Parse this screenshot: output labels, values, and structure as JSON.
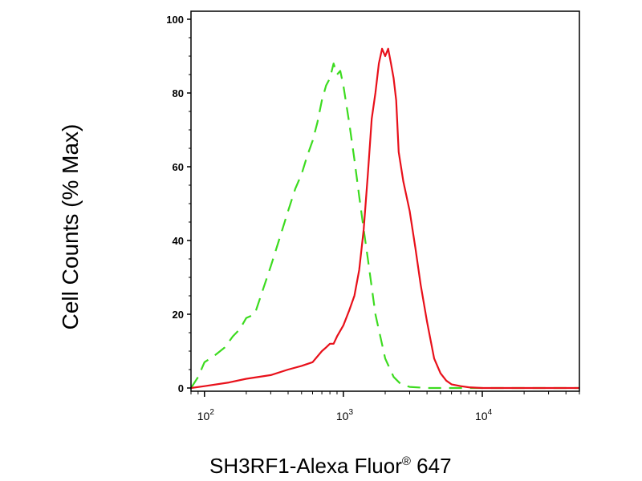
{
  "chart_data": {
    "type": "line",
    "xlabel": "SH3RF1-Alexa Fluor",
    "xlabel_superscript": "®",
    "xlabel_suffix": " 647",
    "ylabel": "Cell Counts (% Max)",
    "x_scale": "log",
    "xlim": [
      80,
      50000
    ],
    "ylim": [
      0,
      100
    ],
    "y_ticks": [
      0,
      20,
      40,
      60,
      80,
      100
    ],
    "x_ticks": [
      {
        "value": 100,
        "base": "10",
        "exp": "2"
      },
      {
        "value": 1000,
        "base": "10",
        "exp": "3"
      },
      {
        "value": 10000,
        "base": "10",
        "exp": "4"
      }
    ],
    "grid": false,
    "series": [
      {
        "color": "#3CDB1F",
        "style": "dashed",
        "x": [
          80,
          90,
          100,
          110,
          120,
          140,
          160,
          180,
          200,
          230,
          260,
          300,
          350,
          400,
          450,
          500,
          550,
          600,
          650,
          700,
          750,
          800,
          850,
          900,
          950,
          1000,
          1100,
          1200,
          1300,
          1400,
          1500,
          1700,
          2000,
          2300,
          2600,
          3000,
          4000,
          6000,
          10000,
          50000
        ],
        "y": [
          0,
          3,
          7,
          8,
          9,
          11,
          14,
          16,
          19,
          20,
          26,
          33,
          41,
          48,
          54,
          58,
          63,
          67,
          72,
          78,
          82,
          84,
          88,
          85,
          86,
          82,
          72,
          62,
          52,
          43,
          35,
          20,
          8,
          3,
          1,
          0.3,
          0,
          0,
          0,
          0
        ]
      },
      {
        "color": "#E8101A",
        "style": "solid",
        "x": [
          80,
          100,
          150,
          200,
          300,
          400,
          500,
          600,
          700,
          750,
          800,
          850,
          900,
          1000,
          1100,
          1200,
          1300,
          1400,
          1500,
          1600,
          1700,
          1800,
          1900,
          2000,
          2100,
          2200,
          2300,
          2400,
          2500,
          2700,
          3000,
          3300,
          3600,
          4000,
          4500,
          5000,
          5500,
          6000,
          7000,
          8000,
          10000,
          20000,
          50000
        ],
        "y": [
          0,
          0.5,
          1.5,
          2.5,
          3.5,
          5,
          6,
          7,
          10,
          11,
          12,
          12,
          14,
          17,
          21,
          25,
          32,
          43,
          58,
          73,
          80,
          88,
          92,
          90,
          92,
          88,
          84,
          78,
          64,
          56,
          48,
          38,
          28,
          18,
          8,
          4,
          2,
          1,
          0.5,
          0.2,
          0,
          0,
          0
        ]
      }
    ]
  }
}
